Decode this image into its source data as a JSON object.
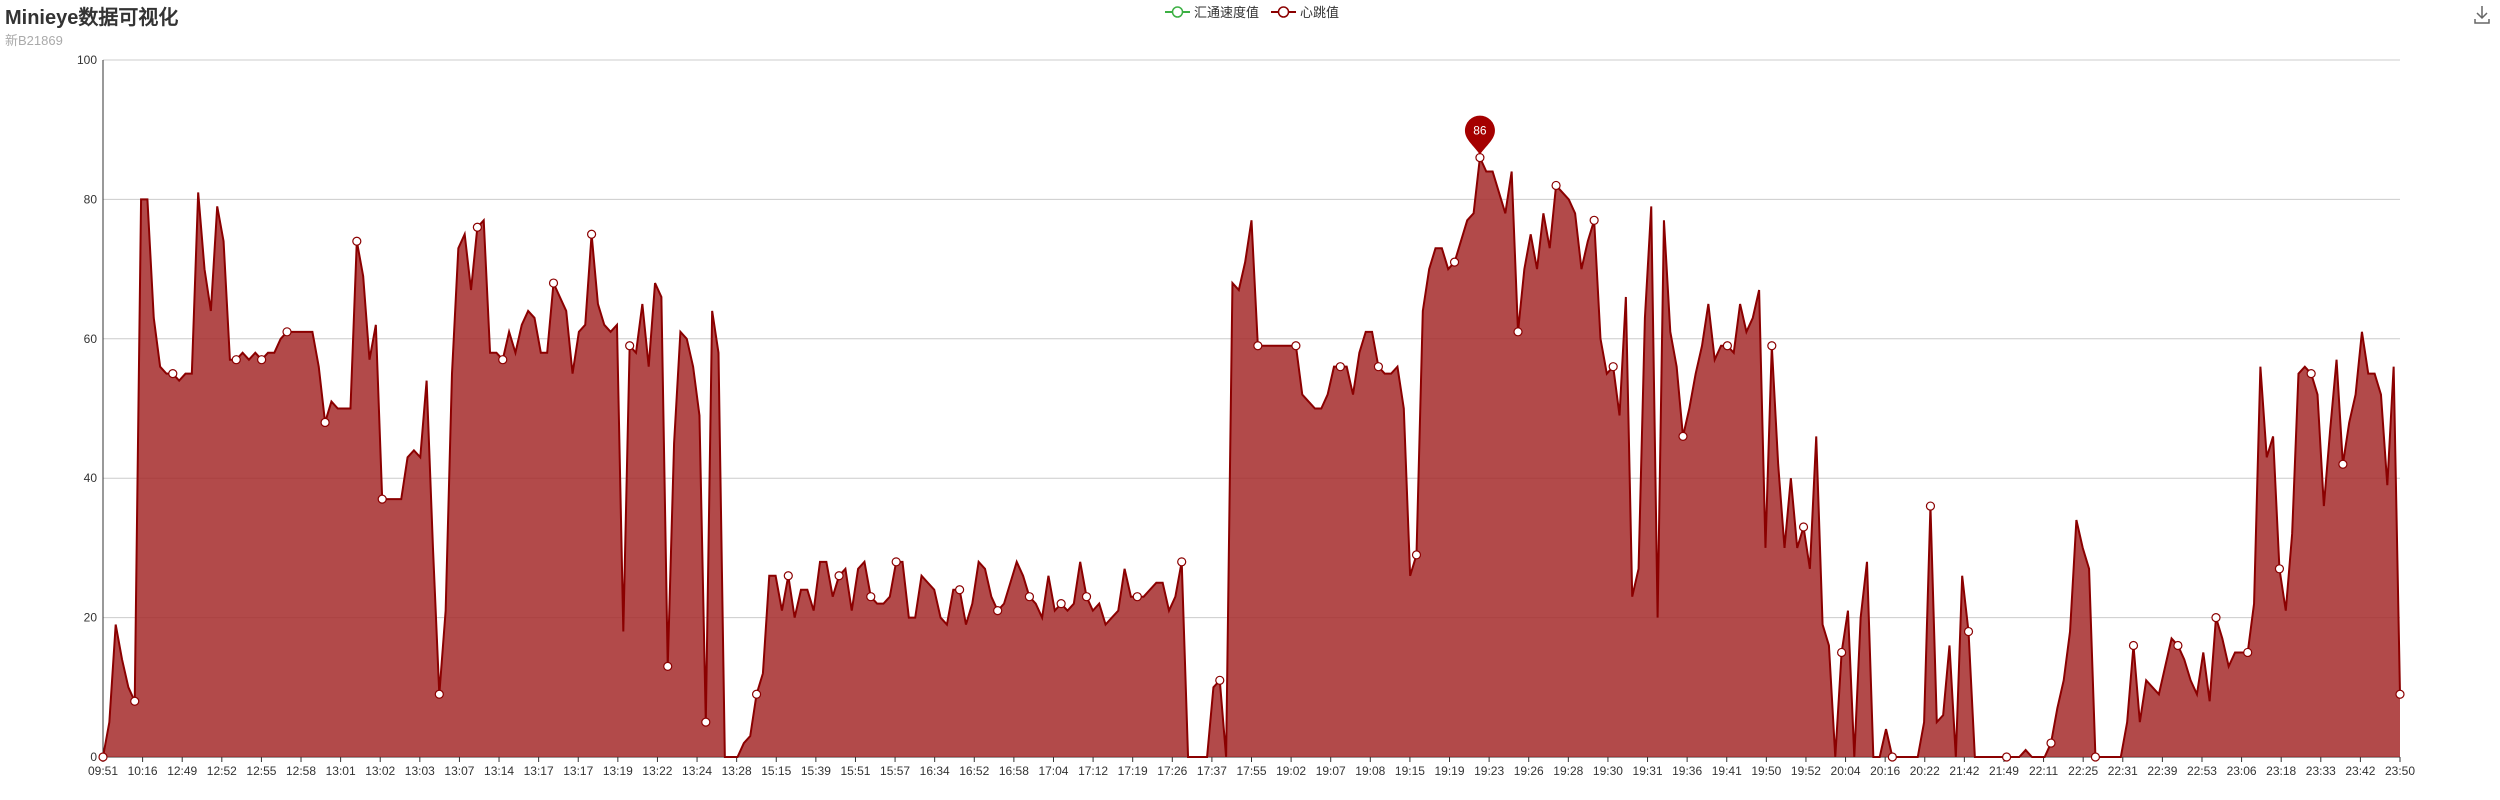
{
  "title": "Minieye数据可视化",
  "subtitle": "新B21869",
  "legend": [
    {
      "name": "汇通速度值",
      "color": "#3cb043"
    },
    {
      "name": "心跳值",
      "color": "#8b0000"
    }
  ],
  "toolbar": {
    "download_icon": "download-icon"
  },
  "colors": {
    "line": "#8b0000",
    "area": "#a52a2a",
    "grid": "#cccccc",
    "axis": "#333333"
  },
  "chart_data": {
    "type": "area",
    "ylim": [
      0,
      100
    ],
    "yticks": [
      0,
      20,
      40,
      60,
      80,
      100
    ],
    "xtick_labels": [
      "09:51",
      "10:16",
      "12:49",
      "12:52",
      "12:55",
      "12:58",
      "13:01",
      "13:02",
      "13:03",
      "13:07",
      "13:14",
      "13:17",
      "13:17",
      "13:19",
      "13:22",
      "13:24",
      "13:28",
      "15:15",
      "15:39",
      "15:51",
      "15:57",
      "16:34",
      "16:52",
      "16:58",
      "17:04",
      "17:12",
      "17:19",
      "17:26",
      "17:37",
      "17:55",
      "19:02",
      "19:07",
      "19:08",
      "19:15",
      "19:19",
      "19:23",
      "19:26",
      "19:28",
      "19:30",
      "19:31",
      "19:36",
      "19:41",
      "19:50",
      "19:52",
      "20:04",
      "20:16",
      "20:22",
      "21:42",
      "21:49",
      "22:11",
      "22:25",
      "22:31",
      "22:39",
      "22:53",
      "23:06",
      "23:18",
      "23:33",
      "23:42",
      "23:50"
    ],
    "series": [
      {
        "name": "汇通速度值",
        "values": []
      },
      {
        "name": "心跳值",
        "values": [
          0,
          5,
          19,
          14,
          10,
          8,
          80,
          80,
          63,
          56,
          55,
          55,
          54,
          55,
          55,
          81,
          70,
          64,
          79,
          74,
          57,
          57,
          58,
          57,
          58,
          57,
          58,
          58,
          60,
          61,
          61,
          61,
          61,
          61,
          56,
          48,
          51,
          50,
          50,
          50,
          74,
          69,
          57,
          62,
          37,
          37,
          37,
          37,
          43,
          44,
          43,
          54,
          30,
          9,
          21,
          55,
          73,
          75,
          67,
          76,
          77,
          58,
          58,
          57,
          61,
          58,
          62,
          64,
          63,
          58,
          58,
          68,
          66,
          64,
          55,
          61,
          62,
          75,
          65,
          62,
          61,
          62,
          18,
          59,
          58,
          65,
          56,
          68,
          66,
          13,
          45,
          61,
          60,
          56,
          49,
          5,
          64,
          58,
          0,
          0,
          0,
          2,
          3,
          9,
          12,
          26,
          26,
          21,
          26,
          20,
          24,
          24,
          21,
          28,
          28,
          23,
          26,
          27,
          21,
          27,
          28,
          23,
          22,
          22,
          23,
          28,
          28,
          20,
          20,
          26,
          25,
          24,
          20,
          19,
          24,
          24,
          19,
          22,
          28,
          27,
          23,
          21,
          22,
          25,
          28,
          26,
          23,
          22,
          20,
          26,
          21,
          22,
          21,
          22,
          28,
          23,
          21,
          22,
          19,
          20,
          21,
          27,
          23,
          23,
          23,
          24,
          25,
          25,
          21,
          23,
          28,
          0,
          0,
          0,
          0,
          10,
          11,
          0,
          68,
          67,
          71,
          77,
          59,
          59,
          59,
          59,
          59,
          59,
          59,
          52,
          51,
          50,
          50,
          52,
          56,
          56,
          56,
          52,
          58,
          61,
          61,
          56,
          55,
          55,
          56,
          50,
          26,
          29,
          64,
          70,
          73,
          73,
          70,
          71,
          74,
          77,
          78,
          86,
          84,
          84,
          81,
          78,
          84,
          61,
          70,
          75,
          70,
          78,
          73,
          82,
          81,
          80,
          78,
          70,
          74,
          77,
          60,
          55,
          56,
          49,
          66,
          23,
          27,
          63,
          79,
          20,
          77,
          61,
          56,
          46,
          50,
          55,
          59,
          65,
          57,
          59,
          59,
          58,
          65,
          61,
          63,
          67,
          30,
          59,
          42,
          30,
          40,
          30,
          33,
          27,
          46,
          19,
          16,
          0,
          15,
          21,
          0,
          20,
          28,
          0,
          0,
          4,
          0,
          0,
          0,
          0,
          0,
          5,
          36,
          5,
          6,
          16,
          0,
          26,
          18,
          0,
          0,
          0,
          0,
          0,
          0,
          0,
          0,
          1,
          0,
          0,
          0,
          2,
          7,
          11,
          18,
          34,
          30,
          27,
          0,
          0,
          0,
          0,
          0,
          5,
          16,
          5,
          11,
          10,
          9,
          13,
          17,
          16,
          14,
          11,
          9,
          15,
          8,
          20,
          17,
          13,
          15,
          15,
          15,
          22,
          56,
          43,
          46,
          27,
          21,
          32,
          55,
          56,
          55,
          52,
          36,
          47,
          57,
          42,
          48,
          52,
          61,
          55,
          55,
          52,
          39,
          56,
          9
        ]
      }
    ],
    "markers": [
      0,
      5,
      11,
      21,
      25,
      29,
      35,
      40,
      44,
      53,
      59,
      63,
      71,
      77,
      83,
      89,
      95,
      103,
      108,
      116,
      121,
      125,
      135,
      141,
      146,
      151,
      155,
      163,
      170,
      176,
      182,
      188,
      195,
      201,
      207,
      213,
      217,
      223,
      229,
      235,
      238,
      249,
      256,
      263,
      268,
      274,
      282,
      288,
      294,
      300,
      307,
      314,
      320,
      327,
      333,
      338,
      343,
      348,
      353,
      362
    ]
  },
  "max_pin": {
    "label": "86"
  }
}
